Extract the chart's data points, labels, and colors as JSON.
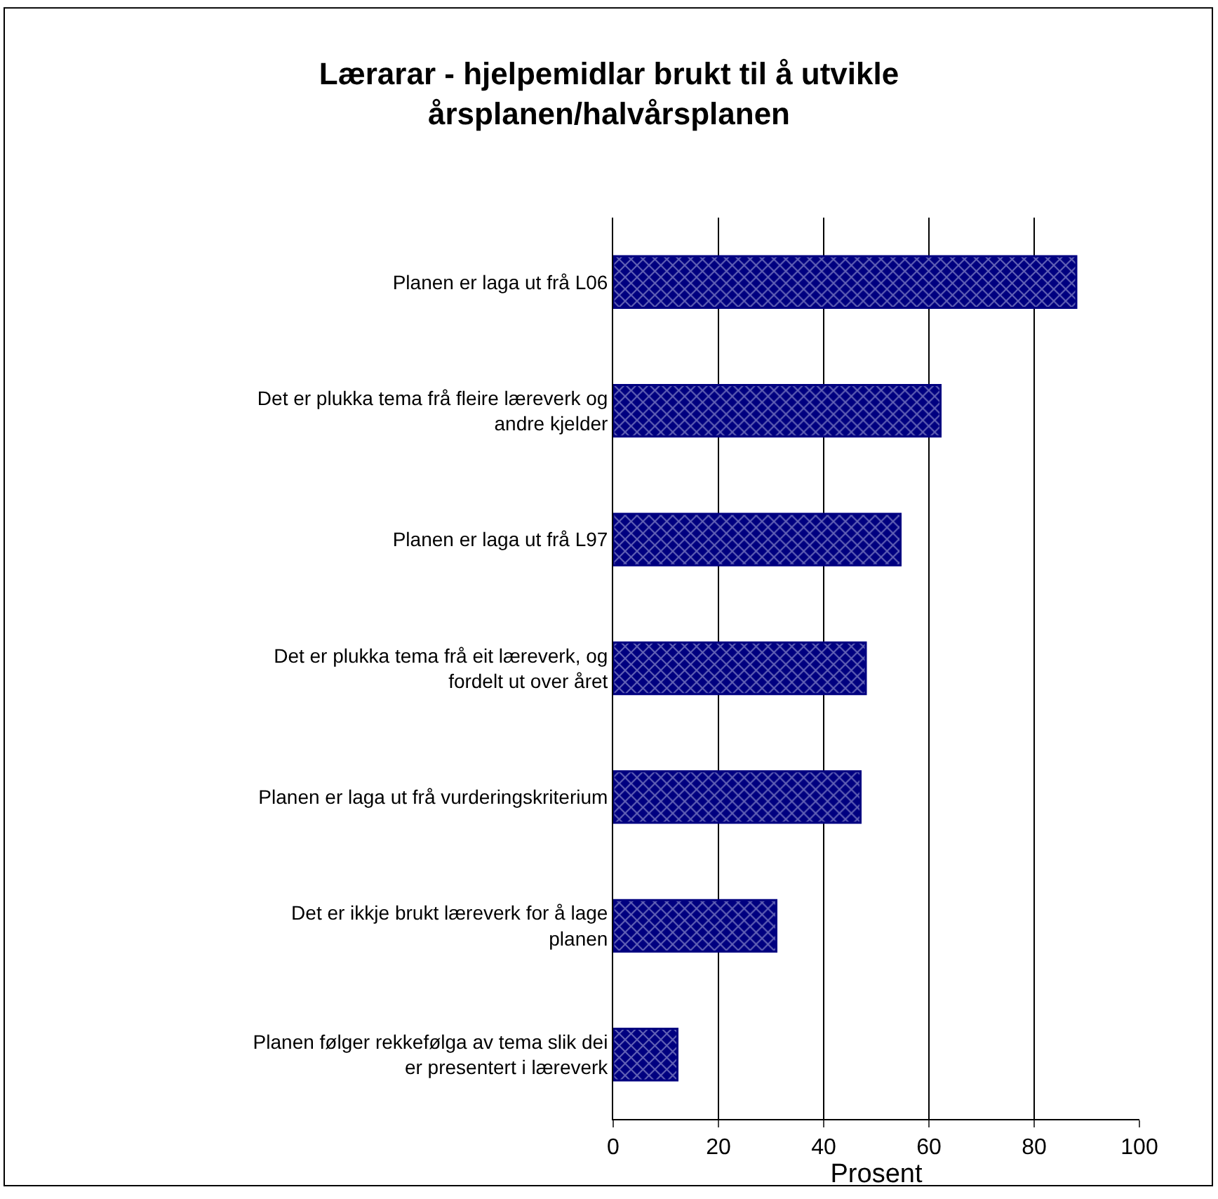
{
  "chart_data": {
    "type": "bar",
    "orientation": "horizontal",
    "title": "Lærarar - hjelpemidlar brukt til å utvikle årsplanen/halvårsplanen",
    "xlabel": "Prosent",
    "categories": [
      "Planen er laga ut frå L06",
      "Det er plukka tema frå fleire læreverk og andre kjelder",
      "Planen er laga ut frå L97",
      "Det er plukka tema frå eit læreverk, og fordelt ut over året",
      "Planen er laga ut frå vurderingskriterium",
      "Det er ikkje brukt læreverk for å lage planen",
      "Planen følger rekkefølga av tema slik dei er presentert i læreverk"
    ],
    "values": [
      88,
      62.2,
      54.6,
      48,
      47,
      31,
      12.2
    ],
    "color": "#000080",
    "xlim": [
      0,
      100
    ],
    "xticks": [
      0,
      20,
      40,
      60,
      80,
      100
    ],
    "grid": "x",
    "legend": false
  }
}
